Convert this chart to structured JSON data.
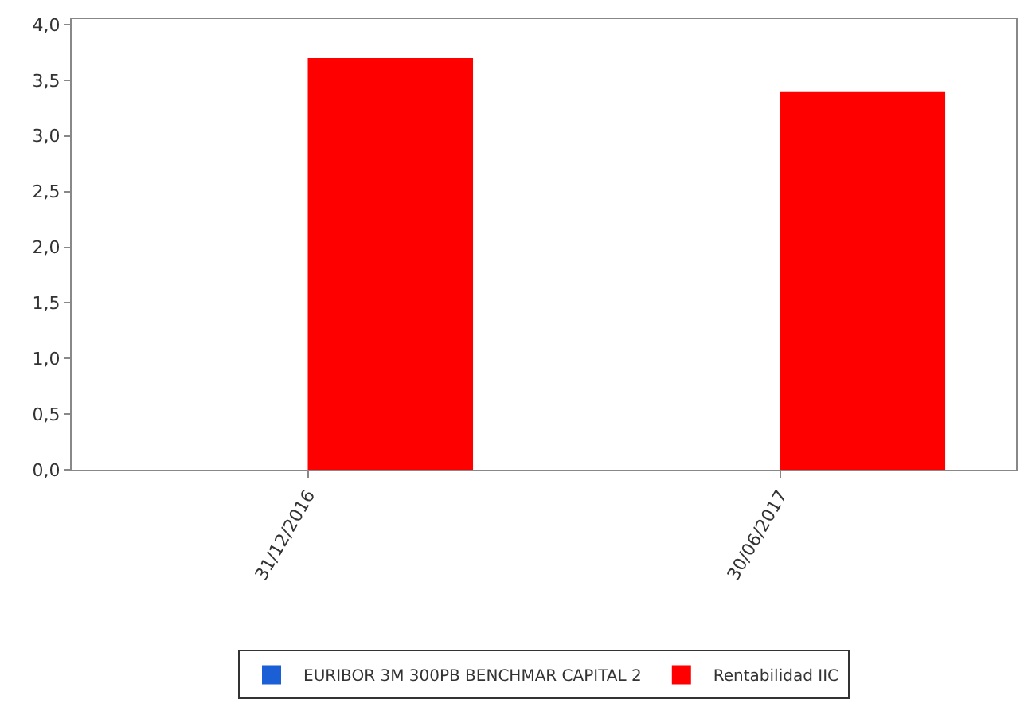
{
  "chart_data": {
    "type": "bar",
    "categories": [
      "31/12/2016",
      "30/06/2017"
    ],
    "series": [
      {
        "name": "EURIBOR 3M 300PB BENCHMAR CAPITAL 2",
        "color": "#1a5fd6",
        "values": [
          null,
          null
        ]
      },
      {
        "name": "Rentabilidad IIC",
        "color": "#ff0000",
        "values": [
          3.7,
          3.4
        ]
      }
    ],
    "ylim": [
      0,
      4.05
    ],
    "yticks": [
      {
        "value": 0,
        "label": "0,0"
      },
      {
        "value": 0.5,
        "label": "0,5"
      },
      {
        "value": 1,
        "label": "1,0"
      },
      {
        "value": 1.5,
        "label": "1,5"
      },
      {
        "value": 2,
        "label": "2,0"
      },
      {
        "value": 2.5,
        "label": "2,5"
      },
      {
        "value": 3,
        "label": "3,0"
      },
      {
        "value": 3.5,
        "label": "3,5"
      },
      {
        "value": 4,
        "label": "4,0"
      }
    ],
    "legend": "bottom"
  }
}
